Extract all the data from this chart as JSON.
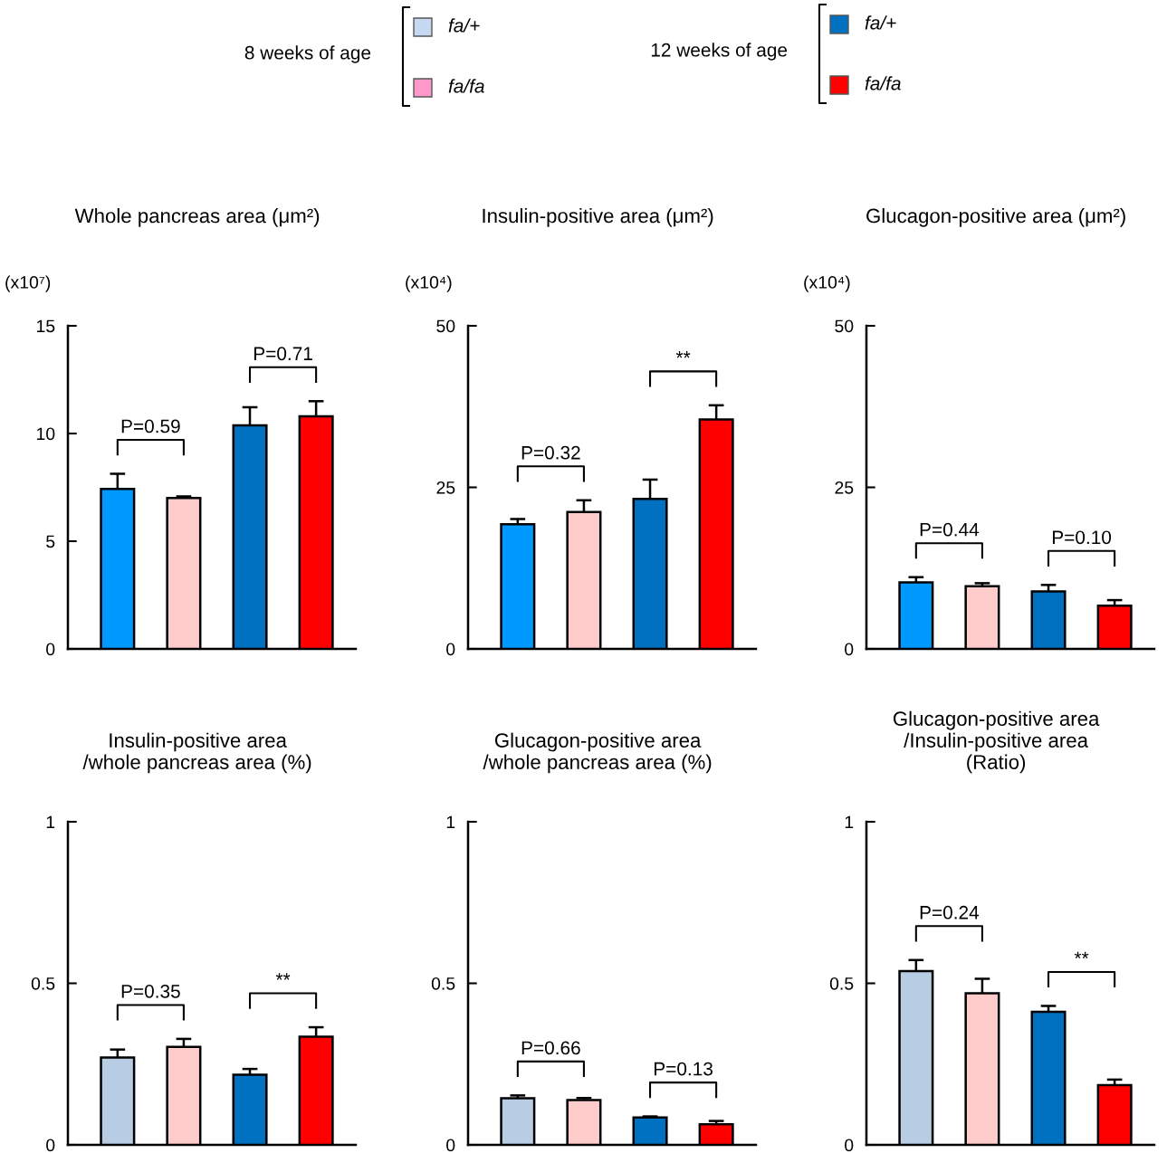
{
  "chart_data": [
    {
      "type": "other",
      "legend": "top",
      "annotations": [
        "8 weeks of age",
        "12 weeks of age"
      ],
      "series": [
        {
          "name": "fa/+",
          "color": "#c6d9f1"
        },
        {
          "name": "fa/fa",
          "color": "#ff99cc"
        },
        {
          "name": "fa/+",
          "color": "#0070c0"
        },
        {
          "name": "fa/fa",
          "color": "#ff0000"
        }
      ]
    },
    {
      "type": "bar",
      "title": "Whole pancreas area (μm²)",
      "ylabel": "(x10⁷)",
      "categories": [
        null,
        null,
        null,
        null
      ],
      "values": [
        7.43,
        7.01,
        10.38,
        10.8
      ],
      "errors": [
        0.7,
        0.07,
        0.84,
        0.7
      ],
      "colors": [
        "#0099ff",
        "#ffcccc",
        "#0070c0",
        "#ff0000"
      ],
      "ylim": [
        0,
        15
      ],
      "yticks": [
        0,
        5,
        10,
        15
      ],
      "annotations": [
        "P=0.59",
        "P=0.71"
      ]
    },
    {
      "type": "bar",
      "title": "Insulin-positive area (μm²)",
      "ylabel": "(x10⁴)",
      "categories": [
        null,
        null,
        null,
        null
      ],
      "values": [
        19.3,
        21.2,
        23.2,
        35.5
      ],
      "errors": [
        0.8,
        1.8,
        3.0,
        2.2
      ],
      "colors": [
        "#0099ff",
        "#ffcccc",
        "#0070c0",
        "#ff0000"
      ],
      "ylim": [
        0,
        50
      ],
      "yticks": [
        0,
        25,
        50
      ],
      "annotations": [
        "P=0.32",
        "**"
      ]
    },
    {
      "type": "bar",
      "title": "Glucagon-positive area (μm²)",
      "ylabel": "(x10⁴)",
      "categories": [
        null,
        null,
        null,
        null
      ],
      "values": [
        10.3,
        9.7,
        8.9,
        6.7
      ],
      "errors": [
        0.8,
        0.47,
        1.0,
        0.85
      ],
      "colors": [
        "#0099ff",
        "#ffcccc",
        "#0070c0",
        "#ff0000"
      ],
      "ylim": [
        0,
        50
      ],
      "yticks": [
        0,
        25,
        50
      ],
      "annotations": [
        "P=0.44",
        "P=0.10"
      ]
    },
    {
      "type": "bar",
      "title": "Insulin-positive area\n/whole pancreas area (%)",
      "categories": [
        null,
        null,
        null,
        null
      ],
      "values": [
        0.27,
        0.303,
        0.217,
        0.335
      ],
      "errors": [
        0.025,
        0.025,
        0.018,
        0.029
      ],
      "colors": [
        "#b8cce4",
        "#ffcccc",
        "#0070c0",
        "#ff0000"
      ],
      "ylim": [
        0,
        1
      ],
      "yticks": [
        0,
        0.5,
        1
      ],
      "annotations": [
        "P=0.35",
        "**"
      ]
    },
    {
      "type": "bar",
      "title": "Glucagon-positive area\n/whole pancreas area (%)",
      "categories": [
        null,
        null,
        null,
        null
      ],
      "values": [
        0.144,
        0.139,
        0.085,
        0.064
      ],
      "errors": [
        0.009,
        0.006,
        0.003,
        0.01
      ],
      "colors": [
        "#b8cce4",
        "#ffcccc",
        "#0070c0",
        "#ff0000"
      ],
      "ylim": [
        0,
        1
      ],
      "yticks": [
        0,
        0.5,
        1
      ],
      "annotations": [
        "P=0.66",
        "P=0.13"
      ]
    },
    {
      "type": "bar",
      "title": "Glucagon-positive area\n/Insulin-positive area\n(Ratio)",
      "categories": [
        null,
        null,
        null,
        null
      ],
      "values": [
        0.538,
        0.469,
        0.412,
        0.185
      ],
      "errors": [
        0.034,
        0.045,
        0.018,
        0.017
      ],
      "colors": [
        "#b8cce4",
        "#ffcccc",
        "#0070c0",
        "#ff0000"
      ],
      "ylim": [
        0,
        1
      ],
      "yticks": [
        0,
        0.5,
        1
      ],
      "annotations": [
        "P=0.24",
        "**"
      ]
    }
  ]
}
